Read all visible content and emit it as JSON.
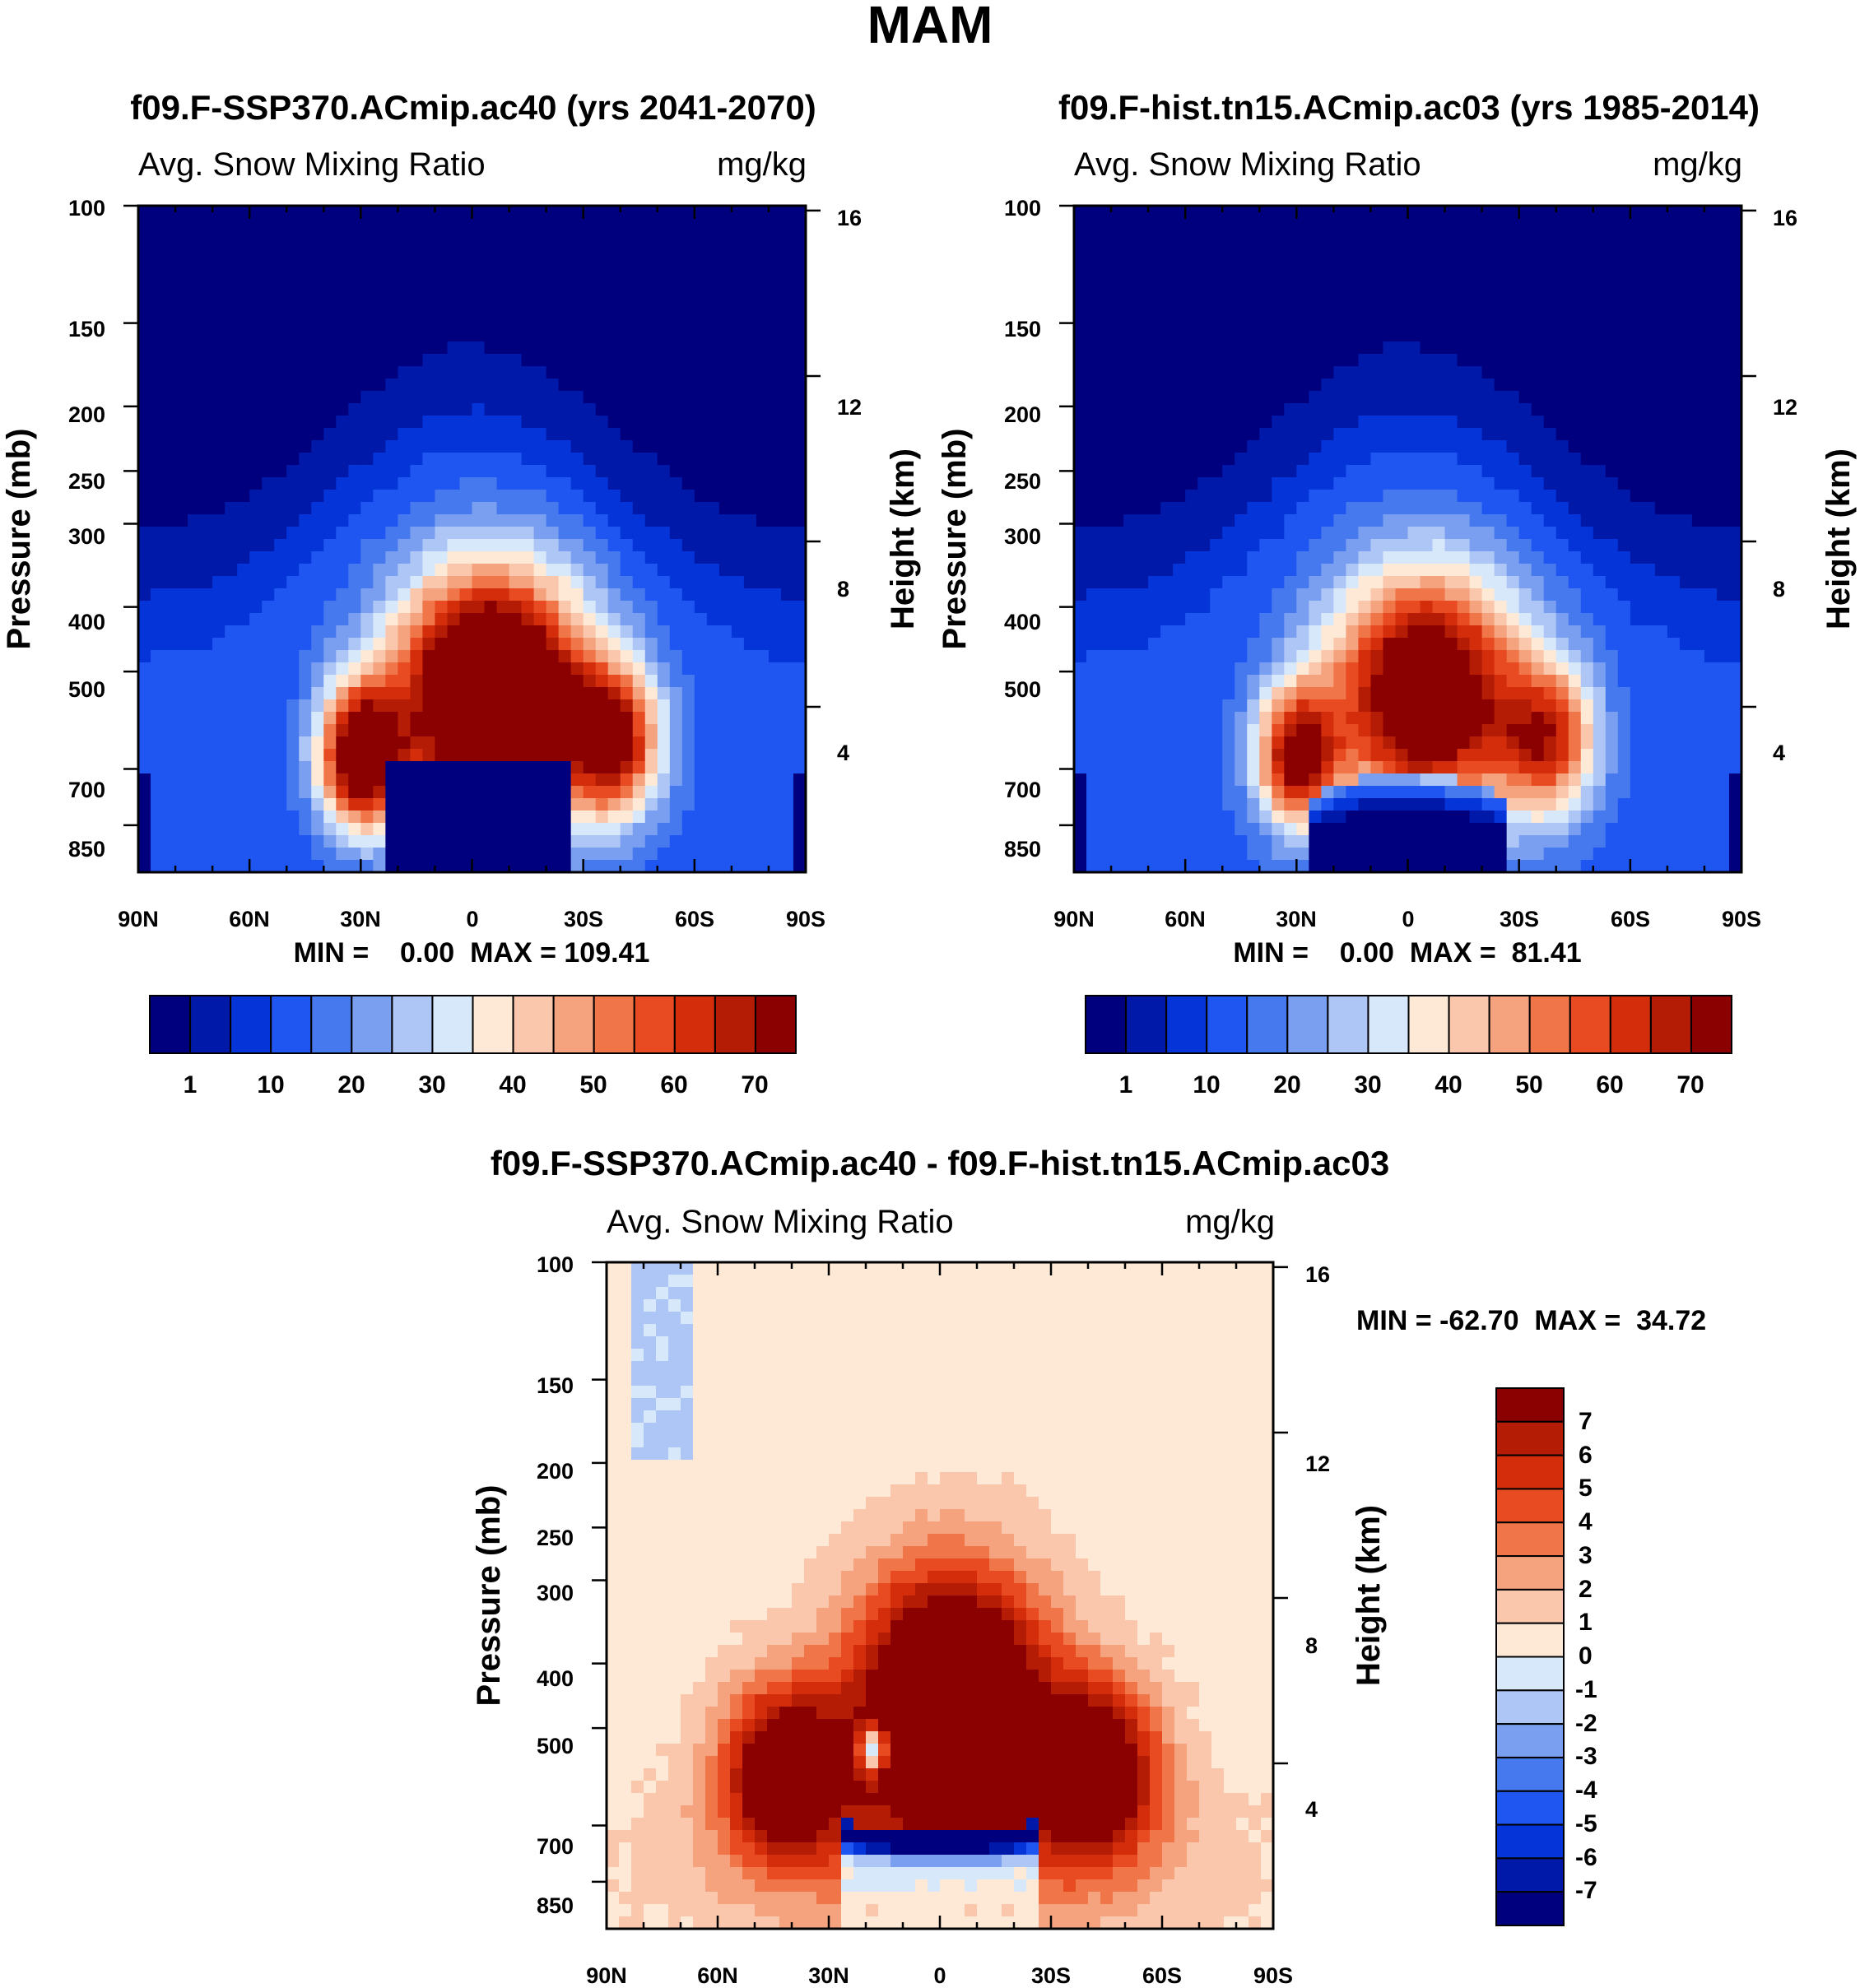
{
  "title": "MAM",
  "colors": {
    "abs_palette": [
      "#00007f",
      "#0019a8",
      "#0535d8",
      "#1f55f0",
      "#4678ee",
      "#7a9ff0",
      "#aec6f5",
      "#d8e8fb",
      "#fde9d5",
      "#fac6ac",
      "#f5a27e",
      "#f07548",
      "#e84b22",
      "#d42d0c",
      "#b41c06",
      "#8b0000"
    ],
    "diff_palette": [
      "#00007f",
      "#0019a8",
      "#0535d8",
      "#1f55f0",
      "#4678ee",
      "#7a9ff0",
      "#aec6f5",
      "#d8e8fb",
      "#fde9d5",
      "#fac6ac",
      "#f5a27e",
      "#f07548",
      "#e84b22",
      "#d42d0c",
      "#b41c06",
      "#8b0000"
    ]
  },
  "chart_data": [
    {
      "type": "heatmap",
      "name": "ssp370",
      "title": "f09.F-SSP370.ACmip.ac40 (yrs 2041-2070)",
      "left_label": "Avg. Snow Mixing Ratio",
      "right_label": "mg/kg",
      "xlabel": "",
      "ylabel": "Pressure (mb)",
      "y2label": "Height (km)",
      "x_ticks": [
        "90N",
        "60N",
        "30N",
        "0",
        "30S",
        "60S",
        "90S"
      ],
      "y_ticks": [
        "100",
        "150",
        "200",
        "250",
        "300",
        "400",
        "500",
        "700",
        "850"
      ],
      "y2_ticks": [
        "16",
        "12",
        "8",
        "4"
      ],
      "xlim": [
        90,
        -90
      ],
      "ylim_mb": [
        100,
        1000
      ],
      "min_text": "MIN =    0.00  MAX = 109.41",
      "min": 0.0,
      "max": 109.41,
      "colorbar": {
        "orientation": "horizontal",
        "labels": [
          "1",
          "10",
          "20",
          "30",
          "40",
          "50",
          "60",
          "70"
        ],
        "levels": [
          1,
          5,
          10,
          15,
          20,
          25,
          30,
          35,
          40,
          45,
          50,
          55,
          60,
          65,
          70
        ]
      }
    },
    {
      "type": "heatmap",
      "name": "hist",
      "title": "f09.F-hist.tn15.ACmip.ac03 (yrs 1985-2014)",
      "left_label": "Avg. Snow Mixing Ratio",
      "right_label": "mg/kg",
      "xlabel": "",
      "ylabel": "Pressure (mb)",
      "y2label": "Height (km)",
      "x_ticks": [
        "90N",
        "60N",
        "30N",
        "0",
        "30S",
        "60S",
        "90S"
      ],
      "y_ticks": [
        "100",
        "150",
        "200",
        "250",
        "300",
        "400",
        "500",
        "700",
        "850"
      ],
      "y2_ticks": [
        "16",
        "12",
        "8",
        "4"
      ],
      "xlim": [
        90,
        -90
      ],
      "ylim_mb": [
        100,
        1000
      ],
      "min_text": "MIN =    0.00  MAX =  81.41",
      "min": 0.0,
      "max": 81.41,
      "colorbar": {
        "orientation": "horizontal",
        "labels": [
          "1",
          "10",
          "20",
          "30",
          "40",
          "50",
          "60",
          "70"
        ],
        "levels": [
          1,
          5,
          10,
          15,
          20,
          25,
          30,
          35,
          40,
          45,
          50,
          55,
          60,
          65,
          70
        ]
      }
    },
    {
      "type": "heatmap",
      "name": "diff",
      "title": "f09.F-SSP370.ACmip.ac40 - f09.F-hist.tn15.ACmip.ac03",
      "left_label": "Avg. Snow Mixing Ratio",
      "right_label": "mg/kg",
      "xlabel": "",
      "ylabel": "Pressure (mb)",
      "y2label": "Height (km)",
      "x_ticks": [
        "90N",
        "60N",
        "30N",
        "0",
        "30S",
        "60S",
        "90S"
      ],
      "y_ticks": [
        "100",
        "150",
        "200",
        "250",
        "300",
        "400",
        "500",
        "700",
        "850"
      ],
      "y2_ticks": [
        "16",
        "12",
        "8",
        "4"
      ],
      "xlim": [
        90,
        -90
      ],
      "ylim_mb": [
        100,
        1000
      ],
      "min_text": "MIN = -62.70  MAX =  34.72",
      "min": -62.7,
      "max": 34.72,
      "colorbar": {
        "orientation": "vertical",
        "labels": [
          "7",
          "6",
          "5",
          "4",
          "3",
          "2",
          "1",
          "0",
          "-1",
          "-2",
          "-3",
          "-4",
          "-5",
          "-6",
          "-7"
        ],
        "levels": [
          7,
          6,
          5,
          4,
          3,
          2,
          1,
          0,
          -1,
          -2,
          -3,
          -4,
          -5,
          -6,
          -7
        ]
      }
    }
  ]
}
